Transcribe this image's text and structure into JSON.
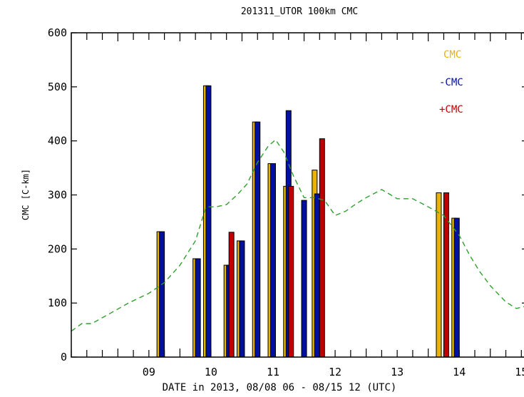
{
  "chart_data": {
    "type": "bar",
    "title": "201311_UTOR 100km CMC",
    "xlabel": "DATE in 2013, 08/08 06 - 08/15 12 (UTC)",
    "ylabel": "CMC [C-km]",
    "xlim": [
      8.25,
      15.6
    ],
    "ylim": [
      0,
      600
    ],
    "x_ticks": [
      "09",
      "10",
      "11",
      "12",
      "13",
      "14",
      "15"
    ],
    "y_ticks": [
      "0",
      "100",
      "200",
      "300",
      "400",
      "500",
      "600"
    ],
    "legend_position": "top-right",
    "series": [
      {
        "name": "CMC",
        "color": "#e8b400",
        "marker": "bar",
        "points": [
          [
            9.67,
            232
          ],
          [
            10.25,
            182
          ],
          [
            10.42,
            502
          ],
          [
            10.75,
            170
          ],
          [
            10.96,
            215
          ],
          [
            11.21,
            435
          ],
          [
            11.46,
            358
          ],
          [
            11.71,
            316
          ],
          [
            12.17,
            346
          ],
          [
            14.17,
            304
          ],
          [
            14.42,
            257
          ]
        ]
      },
      {
        "name": "-CMC",
        "color": "#0010a0",
        "marker": "bar",
        "points": [
          [
            9.71,
            232
          ],
          [
            10.29,
            182
          ],
          [
            10.46,
            502
          ],
          [
            10.79,
            170
          ],
          [
            11.0,
            215
          ],
          [
            11.25,
            435
          ],
          [
            11.5,
            358
          ],
          [
            11.75,
            456
          ],
          [
            12.0,
            290
          ],
          [
            12.21,
            302
          ],
          [
            14.46,
            257
          ]
        ]
      },
      {
        "name": "+CMC",
        "color": "#c00000",
        "marker": "bar",
        "points": [
          [
            10.83,
            231
          ],
          [
            11.79,
            316
          ],
          [
            12.29,
            404
          ],
          [
            14.29,
            304
          ]
        ]
      },
      {
        "name": "",
        "color": "#2ea02e",
        "marker": "dashed-line",
        "points": [
          [
            8.25,
            48
          ],
          [
            8.42,
            62
          ],
          [
            8.58,
            62
          ],
          [
            8.83,
            78
          ],
          [
            9.17,
            100
          ],
          [
            9.5,
            118
          ],
          [
            9.75,
            138
          ],
          [
            10.0,
            170
          ],
          [
            10.25,
            215
          ],
          [
            10.42,
            278
          ],
          [
            10.58,
            278
          ],
          [
            10.75,
            282
          ],
          [
            10.92,
            300
          ],
          [
            11.08,
            320
          ],
          [
            11.25,
            360
          ],
          [
            11.42,
            390
          ],
          [
            11.54,
            402
          ],
          [
            11.67,
            380
          ],
          [
            11.83,
            335
          ],
          [
            12.0,
            295
          ],
          [
            12.17,
            295
          ],
          [
            12.33,
            290
          ],
          [
            12.5,
            262
          ],
          [
            12.67,
            270
          ],
          [
            12.83,
            283
          ],
          [
            13.0,
            295
          ],
          [
            13.25,
            310
          ],
          [
            13.5,
            293
          ],
          [
            13.75,
            293
          ],
          [
            14.0,
            278
          ],
          [
            14.25,
            262
          ],
          [
            14.5,
            225
          ],
          [
            14.67,
            188
          ],
          [
            14.83,
            158
          ],
          [
            15.0,
            132
          ],
          [
            15.25,
            102
          ],
          [
            15.42,
            90
          ],
          [
            15.6,
            95
          ]
        ]
      }
    ]
  }
}
